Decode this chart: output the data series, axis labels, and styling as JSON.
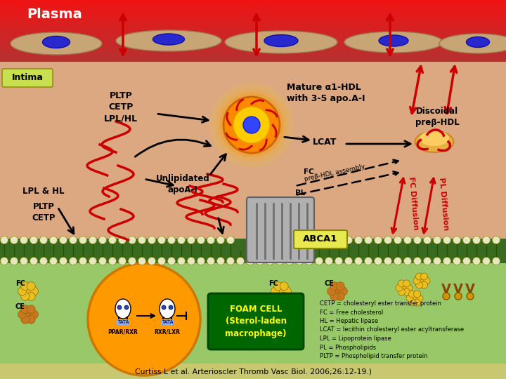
{
  "title": "Plasma",
  "intima_label": "Intima",
  "citation": "Curtiss L et al. Arterioscler Thromb Vasc Biol. 2006;26:12-19.)",
  "labels": {
    "mature_hdl": "Mature α1-HDL\nwith 3-5 apo.A-I",
    "lcat": "LCAT",
    "discoidal": "Discoidal\npreβ-HDL",
    "unlipidated": "Unlipidated\napoA-I",
    "pltp_cetp_lpl": "PLTP\nCETP\nLPL/HL",
    "lpl_hl": "LPL & HL",
    "pltp_cetp": "PLTP\nCETP",
    "abca1": "ABCA1",
    "foam_cell": "FOAM CELL\n(Sterol-laden\nmacrophage)",
    "fc_diffusion": "FC Diffusion",
    "pl_diffusion": "PL Diffusion",
    "fc_label": "FC",
    "ce_label": "CE",
    "ppar_rxr": "PPAR/RXR",
    "rxr_lxr": "RXR/LXR",
    "fc_assembly": "FC",
    "prebhdl_assembly": "preβ-HDL assembly",
    "pl_assembly": "PL"
  },
  "legend_items": [
    "CETP = cholesteryl ester transfer protein",
    "FC = Free cholesterol",
    "HL = Hepatic lipase",
    "LCAT = lecithin cholesteryl ester acyltransferase",
    "LPL = Lipoprotein lipase",
    "PL = Phospholipids",
    "PLTP = Phospholipid transfer protein"
  ],
  "colors": {
    "arrow_red": "#cc0000",
    "arrow_black": "#000000"
  }
}
